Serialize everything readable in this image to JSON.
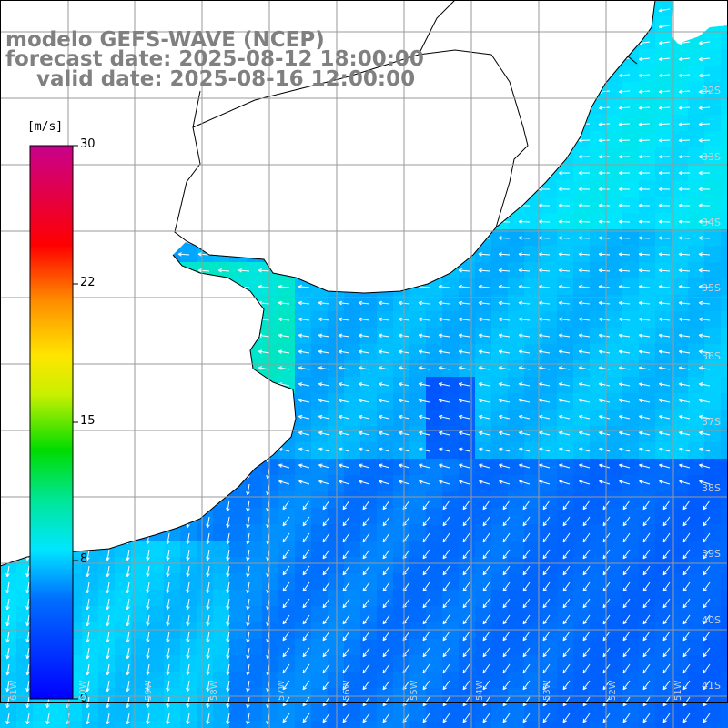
{
  "title": {
    "line1": "modelo GEFS-WAVE (NCEP)",
    "line2": "forecast date: 2025-08-12 18:00:00",
    "line3": "valid date: 2025-08-16 12:00:00"
  },
  "colorbar": {
    "unit": "[m/s]",
    "ticks": [
      {
        "label": "30",
        "value": 30
      },
      {
        "label": "22",
        "value": 22
      },
      {
        "label": "15",
        "value": 15
      },
      {
        "label": "8",
        "value": 8
      },
      {
        "label": "0",
        "value": 0
      }
    ],
    "min": 0,
    "max": 30
  },
  "lat_labels": [
    "32S",
    "33S",
    "34S",
    "35S",
    "36S",
    "37S",
    "38S",
    "39S",
    "40S",
    "41S"
  ],
  "lon_labels": [
    "61W",
    "60W",
    "59W",
    "58W",
    "57W",
    "56W",
    "55W",
    "54W",
    "53W",
    "52W",
    "51W"
  ],
  "colors": {
    "land": "#ffffff",
    "coast": "#000000",
    "grid": "#a0a0a0",
    "arrow": "#ffffff",
    "title": "#808080"
  }
}
